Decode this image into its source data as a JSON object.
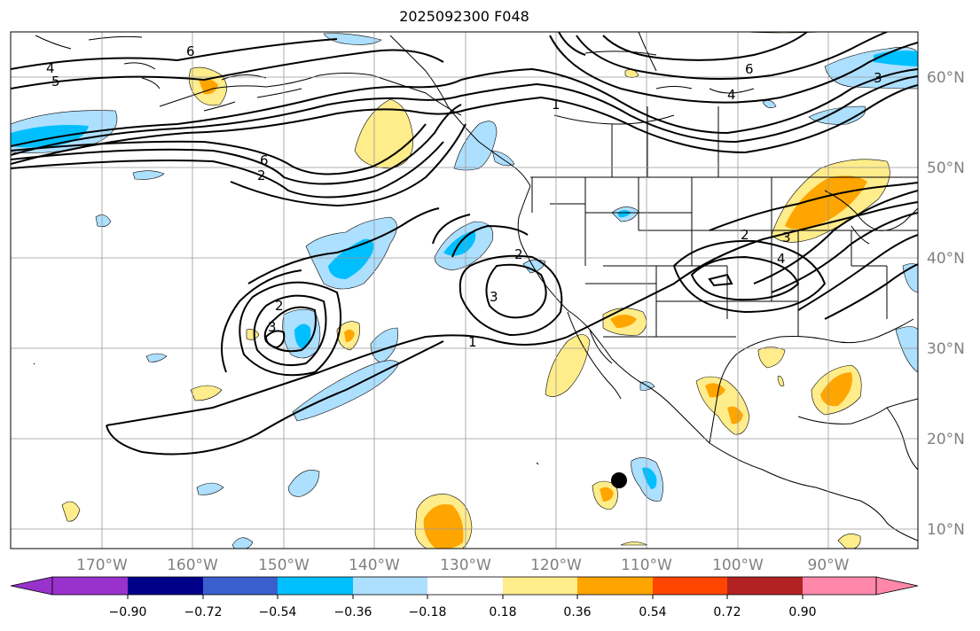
{
  "map": {
    "title": "2025092300 F048",
    "lon_labels": [
      "170°W",
      "160°W",
      "150°W",
      "140°W",
      "130°W",
      "120°W",
      "110°W",
      "100°W",
      "90°W"
    ],
    "lat_labels": [
      "60°N",
      "50°N",
      "40°N",
      "30°N",
      "20°N",
      "10°N"
    ],
    "contour_labels": [
      "4",
      "5",
      "6",
      "6",
      "2",
      "1",
      "4",
      "6",
      "3",
      "2",
      "3",
      "1",
      "3",
      "2",
      "3",
      "4",
      "2"
    ],
    "storm_marker": "black-dot"
  },
  "colorbar": {
    "ticks": [
      "−0.90",
      "−0.72",
      "−0.54",
      "−0.36",
      "−0.18",
      "0.18",
      "0.36",
      "0.54",
      "0.72",
      "0.90"
    ],
    "colors": [
      "#9932CC",
      "#00008B",
      "#3A5FCD",
      "#00BFFF",
      "#ADDFFF",
      "#FFFFFF",
      "#FFEC8B",
      "#FFA500",
      "#FF4500",
      "#B22222",
      "#FF88AA"
    ]
  },
  "colors": {
    "light_blue": "#ADDFFF",
    "blue": "#00BFFF",
    "light_yellow": "#FFEC8B",
    "orange": "#FFA500",
    "gridline": "#999999",
    "label_gray": "#808080"
  }
}
